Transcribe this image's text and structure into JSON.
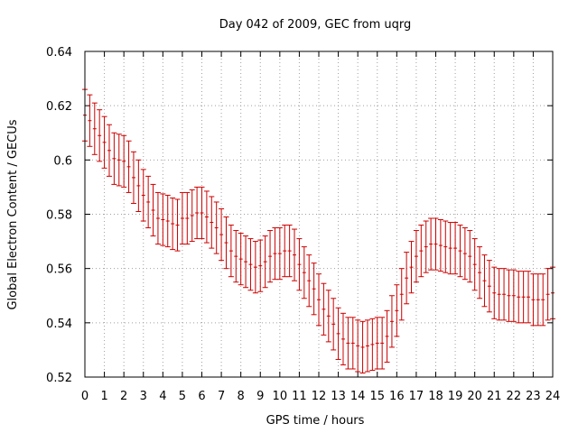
{
  "chart_data": {
    "type": "scatter",
    "title": "Day 042 of 2009, GEC from uqrg",
    "xlabel": "GPS time / hours",
    "ylabel": "Global Electron Content / GECUs",
    "xlim": [
      0,
      24
    ],
    "ylim": [
      0.52,
      0.64
    ],
    "grid": true,
    "x_ticks": [
      "0",
      "1",
      "2",
      "3",
      "4",
      "5",
      "6",
      "7",
      "8",
      "9",
      "10",
      "11",
      "12",
      "13",
      "14",
      "15",
      "16",
      "17",
      "18",
      "19",
      "20",
      "21",
      "22",
      "23",
      "24"
    ],
    "y_ticks": [
      "0.52",
      "0.54",
      "0.56",
      "0.58",
      "0.6",
      "0.62",
      "0.64"
    ],
    "series": [
      {
        "name": "GEC",
        "color": "#cc0000",
        "error": 0.0095,
        "x": [
          0,
          0.25,
          0.5,
          0.75,
          1,
          1.25,
          1.5,
          1.75,
          2,
          2.25,
          2.5,
          2.75,
          3,
          3.25,
          3.5,
          3.75,
          4,
          4.25,
          4.5,
          4.75,
          5,
          5.25,
          5.5,
          5.75,
          6,
          6.25,
          6.5,
          6.75,
          7,
          7.25,
          7.5,
          7.75,
          8,
          8.25,
          8.5,
          8.75,
          9,
          9.25,
          9.5,
          9.75,
          10,
          10.25,
          10.5,
          10.75,
          11,
          11.25,
          11.5,
          11.75,
          12,
          12.25,
          12.5,
          12.75,
          13,
          13.25,
          13.5,
          13.75,
          14,
          14.25,
          14.5,
          14.75,
          15,
          15.25,
          15.5,
          15.75,
          16,
          16.25,
          16.5,
          16.75,
          17,
          17.25,
          17.5,
          17.75,
          18,
          18.25,
          18.5,
          18.75,
          19,
          19.25,
          19.5,
          19.75,
          20,
          20.25,
          20.5,
          20.75,
          21,
          21.25,
          21.5,
          21.75,
          22,
          22.25,
          22.5,
          22.75,
          23,
          23.25,
          23.5,
          23.75,
          24
        ],
        "y": [
          0.6165,
          0.6145,
          0.6115,
          0.609,
          0.6065,
          0.6035,
          0.6005,
          0.6,
          0.5995,
          0.5975,
          0.5935,
          0.5905,
          0.587,
          0.5845,
          0.5815,
          0.5785,
          0.578,
          0.5775,
          0.5765,
          0.576,
          0.5785,
          0.5785,
          0.5795,
          0.5805,
          0.5805,
          0.579,
          0.577,
          0.575,
          0.5725,
          0.5695,
          0.5665,
          0.5645,
          0.5635,
          0.5625,
          0.5615,
          0.5605,
          0.561,
          0.5625,
          0.5645,
          0.5655,
          0.5655,
          0.5665,
          0.5665,
          0.565,
          0.5615,
          0.5585,
          0.5555,
          0.5525,
          0.5485,
          0.545,
          0.5425,
          0.5395,
          0.536,
          0.534,
          0.5325,
          0.5325,
          0.5315,
          0.531,
          0.5315,
          0.532,
          0.5325,
          0.5325,
          0.535,
          0.5405,
          0.5445,
          0.5505,
          0.5565,
          0.5605,
          0.5645,
          0.5665,
          0.568,
          0.569,
          0.569,
          0.5685,
          0.568,
          0.5675,
          0.5675,
          0.5665,
          0.5655,
          0.5645,
          0.5615,
          0.5585,
          0.5555,
          0.5535,
          0.551,
          0.5505,
          0.5505,
          0.55,
          0.55,
          0.5495,
          0.5495,
          0.5495,
          0.5485,
          0.5485,
          0.5485,
          0.5505,
          0.551
        ]
      }
    ]
  }
}
